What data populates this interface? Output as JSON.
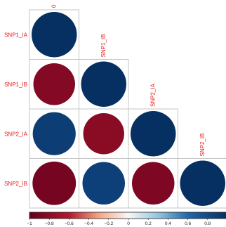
{
  "chart_data": {
    "type": "heatmap",
    "subtype": "correlation-circle-lower-triangle",
    "variables": [
      "SNP1_IA",
      "SNP1_IB",
      "SNP2_IA",
      "SNP2_IB"
    ],
    "matrix": [
      [
        1.0,
        null,
        null,
        null
      ],
      [
        -0.85,
        1.0,
        null,
        null
      ],
      [
        0.9,
        -0.82,
        1.0,
        null
      ],
      [
        -0.92,
        0.88,
        -0.88,
        1.0
      ]
    ],
    "first_column_label_partial": "0",
    "colorbar": {
      "range": [
        -1,
        1
      ],
      "ticks": [
        "−1",
        "−0.8",
        "−0.6",
        "−0.4",
        "−0.2",
        "0",
        "0.2",
        "0.4",
        "0.6",
        "0.8"
      ]
    },
    "label_color": "#e41a1c",
    "grid": true
  }
}
